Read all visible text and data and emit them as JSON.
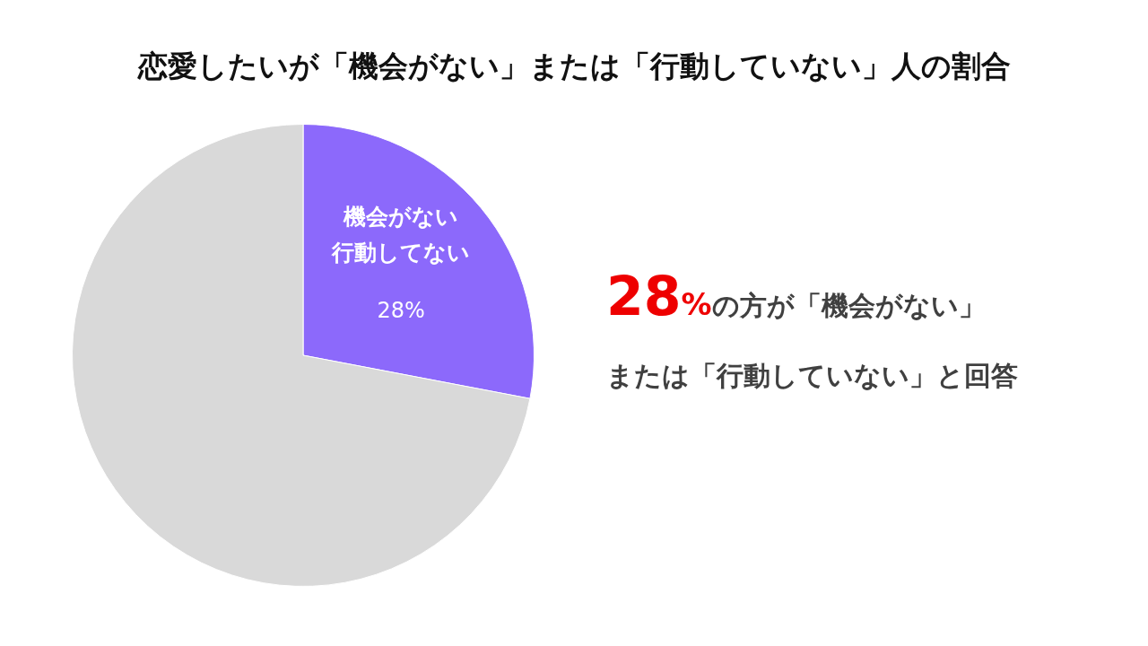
{
  "chart_data": {
    "type": "pie",
    "title": "恋愛したいが「機会がない」または「行動していない」人の割合",
    "categories": [
      "機会がない行動してない",
      null
    ],
    "values": [
      28,
      72
    ],
    "colors": [
      "#8c69fb",
      "#d9d9d9"
    ],
    "value_labels": [
      "28%",
      null
    ],
    "legend": false,
    "annotations": [
      "28%の方が「機会がない」",
      "または「行動していない」と回答"
    ]
  }
}
